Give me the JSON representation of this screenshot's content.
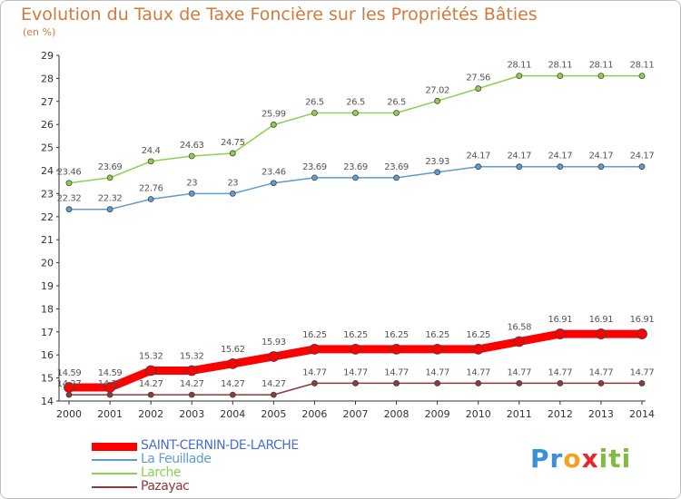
{
  "title": "Evolution du Taux de Taxe Foncière sur les Propriétés Bâties",
  "unit": "(en %)",
  "logo": {
    "text": "Proxiti",
    "letters": [
      "P",
      "r",
      "o",
      "x",
      "i",
      "t",
      "i"
    ],
    "colors": [
      "#3b8fd9",
      "#3b8fd9",
      "#f5a11b",
      "#e4292b",
      "#7cbf3c",
      "#7cbf3c",
      "#7cbf3c"
    ]
  },
  "chart_data": {
    "type": "line",
    "title": "Evolution du Taux de Taxe Foncière sur les Propriétés Bâties",
    "ylabel": "(en %)",
    "xlabel": "",
    "x": [
      "2000",
      "2001",
      "2002",
      "2003",
      "2004",
      "2005",
      "2006",
      "2007",
      "2008",
      "2009",
      "2010",
      "2011",
      "2012",
      "2013",
      "2014"
    ],
    "ylim": [
      14,
      29
    ],
    "yticks": [
      "14",
      "15",
      "16",
      "17",
      "18",
      "19",
      "20",
      "21",
      "22",
      "23",
      "24",
      "25",
      "26",
      "27",
      "28",
      "29"
    ],
    "grid": "none",
    "legend_position": "bottom-left",
    "series": [
      {
        "name": "SAINT-CERNIN-DE-LARCHE",
        "color": "#ff0000",
        "values": [
          14.59,
          14.59,
          15.32,
          15.32,
          15.62,
          15.93,
          16.25,
          16.25,
          16.25,
          16.25,
          16.25,
          16.58,
          16.91,
          16.91,
          16.91
        ],
        "labels": [
          "14.59",
          "14.59",
          "15.32",
          "15.32",
          "15.62",
          "15.93",
          "16.25",
          "16.25",
          "16.25",
          "16.25",
          "16.25",
          "16.58",
          "16.91",
          "16.91",
          "16.91"
        ]
      },
      {
        "name": "La Feuillade",
        "color": "#5d9dd1",
        "values": [
          22.32,
          22.32,
          22.76,
          23,
          23,
          23.46,
          23.69,
          23.69,
          23.69,
          23.93,
          24.17,
          24.17,
          24.17,
          24.17,
          24.17
        ],
        "labels": [
          "22.32",
          "22.32",
          "22.76",
          "23",
          "23",
          "23.46",
          "23.69",
          "23.69",
          "23.69",
          "23.93",
          "24.17",
          "24.17",
          "24.17",
          "24.17",
          "24.17"
        ]
      },
      {
        "name": "Larche",
        "color": "#8cd14c",
        "values": [
          23.46,
          23.69,
          24.4,
          24.63,
          24.75,
          25.99,
          26.5,
          26.5,
          26.5,
          27.02,
          27.56,
          28.11,
          28.11,
          28.11,
          28.11
        ],
        "labels": [
          "23.46",
          "23.69",
          "24.4",
          "24.63",
          "24.75",
          "25.99",
          "26.5",
          "26.5",
          "26.5",
          "27.02",
          "27.56",
          "28.11",
          "28.11",
          "28.11",
          "28.11"
        ]
      },
      {
        "name": "Pazayac",
        "color": "#8c3a3a",
        "values": [
          14.27,
          14.27,
          14.27,
          14.27,
          14.27,
          14.27,
          14.77,
          14.77,
          14.77,
          14.77,
          14.77,
          14.77,
          14.77,
          14.77,
          14.77
        ],
        "labels": [
          "14.27",
          "14.27",
          "14.27",
          "14.27",
          "14.27",
          "14.27",
          "14.77",
          "14.77",
          "14.77",
          "14.77",
          "14.77",
          "14.77",
          "14.77",
          "14.77",
          "14.77"
        ]
      }
    ]
  }
}
